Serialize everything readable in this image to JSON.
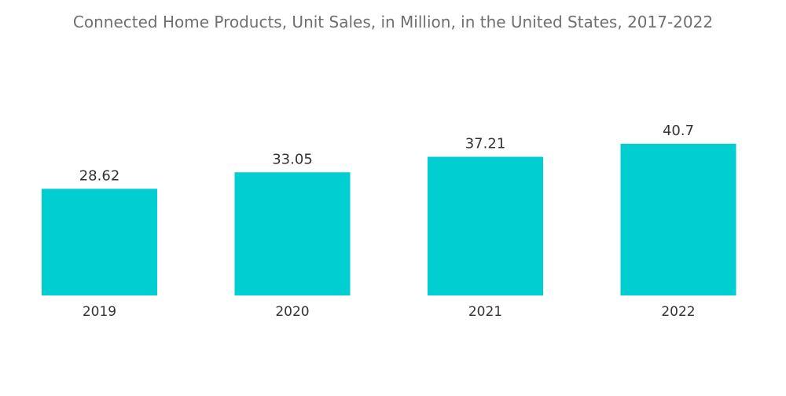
{
  "chart_data": {
    "type": "bar",
    "title": "Connected Home Products, Unit Sales, in Million, in the United States, 2017-2022",
    "categories": [
      "2019",
      "2020",
      "2021",
      "2022"
    ],
    "values": [
      28.62,
      33.05,
      37.21,
      40.7
    ],
    "value_labels": [
      "28.62",
      "33.05",
      "37.21",
      "40.7"
    ],
    "xlabel": "",
    "ylabel": "",
    "ylim": [
      0,
      40.7
    ],
    "grid": false,
    "legend": "none",
    "bar_color": "#00ced1"
  }
}
